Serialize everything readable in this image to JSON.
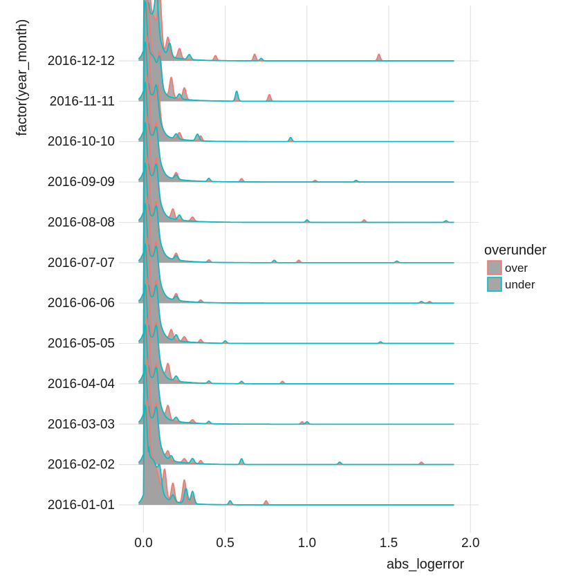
{
  "chart_data": {
    "type": "area",
    "subtype": "ridgeline-density",
    "title": "",
    "xlabel": "abs_logerror",
    "ylabel": "factor(year_month)",
    "xlim": [
      -0.15,
      2.05
    ],
    "x_ticks": [
      0.0,
      0.5,
      1.0,
      1.5,
      2.0
    ],
    "x_tick_labels": [
      "0.0",
      "0.5",
      "1.0",
      "1.5",
      "2.0"
    ],
    "x_data_range": [
      0.0,
      1.9
    ],
    "grid": "vertical-major",
    "ridge_overlap": 1.4,
    "categories": [
      "2016-01-01",
      "2016-02-02",
      "2016-03-03",
      "2016-04-04",
      "2016-05-05",
      "2016-06-06",
      "2016-07-07",
      "2016-08-08",
      "2016-09-09",
      "2016-10-10",
      "2016-11-11",
      "2016-12-12"
    ],
    "legend": {
      "title": "overunder",
      "placement": "right",
      "entries": [
        {
          "label": "over",
          "color": "#f8766d",
          "fill": "#a6a6a6"
        },
        {
          "label": "under",
          "color": "#00bfc4",
          "fill": "#a6a6a6"
        }
      ]
    },
    "series": [
      {
        "name": "over",
        "color": "#f8766d",
        "peak_x": 0.02,
        "ridges": [
          [
            [
              0.13,
              0.32
            ],
            [
              0.18,
              0.22
            ],
            [
              0.25,
              0.28
            ],
            [
              0.3,
              0.1
            ],
            [
              0.75,
              0.05
            ]
          ],
          [
            [
              0.08,
              0.3
            ],
            [
              0.15,
              0.1
            ],
            [
              0.25,
              0.05
            ],
            [
              0.35,
              0.04
            ],
            [
              1.7,
              0.03
            ]
          ],
          [
            [
              0.08,
              0.28
            ],
            [
              0.15,
              0.16
            ],
            [
              0.3,
              0.04
            ],
            [
              0.97,
              0.03
            ]
          ],
          [
            [
              0.08,
              0.3
            ],
            [
              0.15,
              0.18
            ],
            [
              0.85,
              0.03
            ]
          ],
          [
            [
              0.08,
              0.32
            ],
            [
              0.17,
              0.12
            ],
            [
              0.25,
              0.06
            ],
            [
              0.35,
              0.04
            ]
          ],
          [
            [
              0.08,
              0.3
            ],
            [
              0.2,
              0.08
            ],
            [
              0.35,
              0.03
            ],
            [
              1.75,
              0.02
            ]
          ],
          [
            [
              0.08,
              0.3
            ],
            [
              0.2,
              0.08
            ],
            [
              0.4,
              0.03
            ],
            [
              0.95,
              0.03
            ]
          ],
          [
            [
              0.08,
              0.34
            ],
            [
              0.18,
              0.12
            ],
            [
              0.3,
              0.05
            ],
            [
              1.35,
              0.03
            ]
          ],
          [
            [
              0.08,
              0.28
            ],
            [
              0.2,
              0.08
            ],
            [
              0.6,
              0.04
            ],
            [
              1.05,
              0.02
            ]
          ],
          [
            [
              0.09,
              0.32
            ],
            [
              0.22,
              0.08
            ],
            [
              0.35,
              0.06
            ]
          ],
          [
            [
              0.1,
              0.32
            ],
            [
              0.17,
              0.24
            ],
            [
              0.25,
              0.14
            ],
            [
              0.77,
              0.08
            ]
          ],
          [
            [
              0.1,
              0.55
            ],
            [
              0.15,
              0.22
            ],
            [
              0.22,
              0.12
            ],
            [
              0.44,
              0.06
            ],
            [
              0.68,
              0.08
            ],
            [
              1.44,
              0.08
            ]
          ]
        ]
      },
      {
        "name": "under",
        "color": "#00bfc4",
        "peak_x": 0.01,
        "ridges": [
          [
            [
              0.1,
              0.2
            ],
            [
              0.18,
              0.08
            ],
            [
              0.26,
              0.18
            ],
            [
              0.3,
              0.15
            ],
            [
              0.53,
              0.05
            ]
          ],
          [
            [
              0.08,
              0.25
            ],
            [
              0.17,
              0.06
            ],
            [
              0.3,
              0.06
            ],
            [
              0.6,
              0.07
            ],
            [
              1.2,
              0.03
            ]
          ],
          [
            [
              0.08,
              0.24
            ],
            [
              0.2,
              0.05
            ],
            [
              0.4,
              0.03
            ],
            [
              1.0,
              0.03
            ]
          ],
          [
            [
              0.08,
              0.26
            ],
            [
              0.2,
              0.06
            ],
            [
              0.4,
              0.03
            ],
            [
              0.6,
              0.03
            ]
          ],
          [
            [
              0.08,
              0.26
            ],
            [
              0.2,
              0.07
            ],
            [
              0.5,
              0.03
            ],
            [
              1.45,
              0.02
            ]
          ],
          [
            [
              0.08,
              0.24
            ],
            [
              0.2,
              0.05
            ],
            [
              1.7,
              0.02
            ]
          ],
          [
            [
              0.08,
              0.24
            ],
            [
              0.2,
              0.05
            ],
            [
              0.8,
              0.03
            ],
            [
              1.55,
              0.02
            ]
          ],
          [
            [
              0.08,
              0.26
            ],
            [
              0.22,
              0.06
            ],
            [
              1.0,
              0.03
            ],
            [
              1.85,
              0.02
            ]
          ],
          [
            [
              0.08,
              0.22
            ],
            [
              0.2,
              0.05
            ],
            [
              0.4,
              0.04
            ],
            [
              1.3,
              0.02
            ]
          ],
          [
            [
              0.08,
              0.24
            ],
            [
              0.2,
              0.06
            ],
            [
              0.33,
              0.08
            ],
            [
              0.9,
              0.05
            ]
          ],
          [
            [
              0.1,
              0.26
            ],
            [
              0.22,
              0.06
            ],
            [
              0.57,
              0.12
            ]
          ],
          [
            [
              0.08,
              0.4
            ],
            [
              0.16,
              0.16
            ],
            [
              0.28,
              0.06
            ],
            [
              0.72,
              0.03
            ]
          ]
        ]
      }
    ]
  }
}
